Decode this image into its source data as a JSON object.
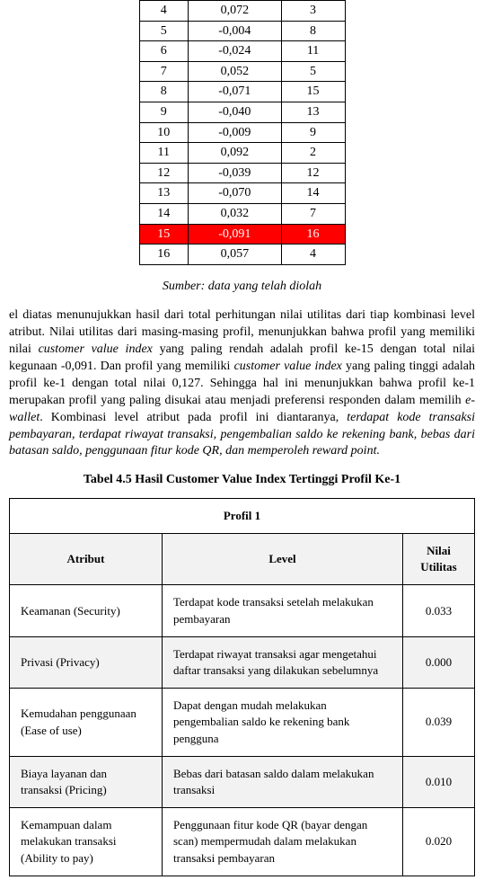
{
  "topTable": {
    "rows": [
      {
        "c1": "4",
        "c2": "0,072",
        "c3": "3",
        "hl": false
      },
      {
        "c1": "5",
        "c2": "-0,004",
        "c3": "8",
        "hl": false
      },
      {
        "c1": "6",
        "c2": "-0,024",
        "c3": "11",
        "hl": false
      },
      {
        "c1": "7",
        "c2": "0,052",
        "c3": "5",
        "hl": false
      },
      {
        "c1": "8",
        "c2": "-0,071",
        "c3": "15",
        "hl": false
      },
      {
        "c1": "9",
        "c2": "-0,040",
        "c3": "13",
        "hl": false
      },
      {
        "c1": "10",
        "c2": "-0,009",
        "c3": "9",
        "hl": false
      },
      {
        "c1": "11",
        "c2": "0,092",
        "c3": "2",
        "hl": false
      },
      {
        "c1": "12",
        "c2": "-0,039",
        "c3": "12",
        "hl": false
      },
      {
        "c1": "13",
        "c2": "-0,070",
        "c3": "14",
        "hl": false
      },
      {
        "c1": "14",
        "c2": "0,032",
        "c3": "7",
        "hl": false
      },
      {
        "c1": "15",
        "c2": "-0,091",
        "c3": "16",
        "hl": true
      },
      {
        "c1": "16",
        "c2": "0,057",
        "c3": "4",
        "hl": false
      }
    ]
  },
  "sourceText": "Sumber: data yang telah diolah",
  "paragraph": {
    "pre": "el diatas menunujukkan hasil dari total perhitungan nilai utilitas dari tiap kombinasi level atribut. Nilai utilitas dari masing-masing profil, menunjukkan bahwa profil yang memiliki nilai ",
    "italic1": "customer value index",
    "mid1": " yang paling rendah adalah profil ke-15 dengan total nilai kegunaan -0,091. Dan profil yang memiliki ",
    "italic2": "customer value index",
    "mid2": " yang paling tinggi adalah profil ke-1 dengan total nilai 0,127. Sehingga hal ini menunjukkan bahwa profil ke-1 merupakan profil yang paling disukai atau menjadi preferensi responden dalam memilih ",
    "italic3": "e-wallet",
    "mid3": ". Kombinasi level atribut pada profil ini diantaranya, ",
    "italic4": "terdapat kode transaksi pembayaran, terdapat riwayat transaksi, pengembalian saldo ke rekening bank, bebas dari batasan saldo, penggunaan fitur kode QR, dan memperoleh reward point."
  },
  "table45": {
    "title": "Tabel 4.5 Hasil Customer Value Index Tertinggi Profil Ke-1",
    "profileHeader": "Profil 1",
    "columns": {
      "attr": "Atribut",
      "level": "Level",
      "util": "Nilai Utilitas"
    },
    "rows": [
      {
        "attr": "Keamanan (Security)",
        "level": "Terdapat kode transaksi setelah melakukan pembayaran",
        "util": "0.033"
      },
      {
        "attr": "Privasi (Privacy)",
        "level": "Terdapat riwayat transaksi agar mengetahui daftar transaksi yang dilakukan sebelumnya",
        "util": "0.000"
      },
      {
        "attr": "Kemudahan penggunaan (Ease of use)",
        "level": "Dapat dengan mudah melakukan pengembalian saldo ke rekening bank pengguna",
        "util": "0.039"
      },
      {
        "attr": "Biaya layanan dan transaksi (Pricing)",
        "level": "Bebas dari batasan saldo dalam melakukan transaksi",
        "util": "0.010"
      },
      {
        "attr": "Kemampuan dalam melakukan transaksi (Ability to pay)",
        "level": "Penggunaan fitur kode QR (bayar dengan scan) mempermudah dalam melakukan transaksi pembayaran",
        "util": "0.020"
      }
    ]
  }
}
